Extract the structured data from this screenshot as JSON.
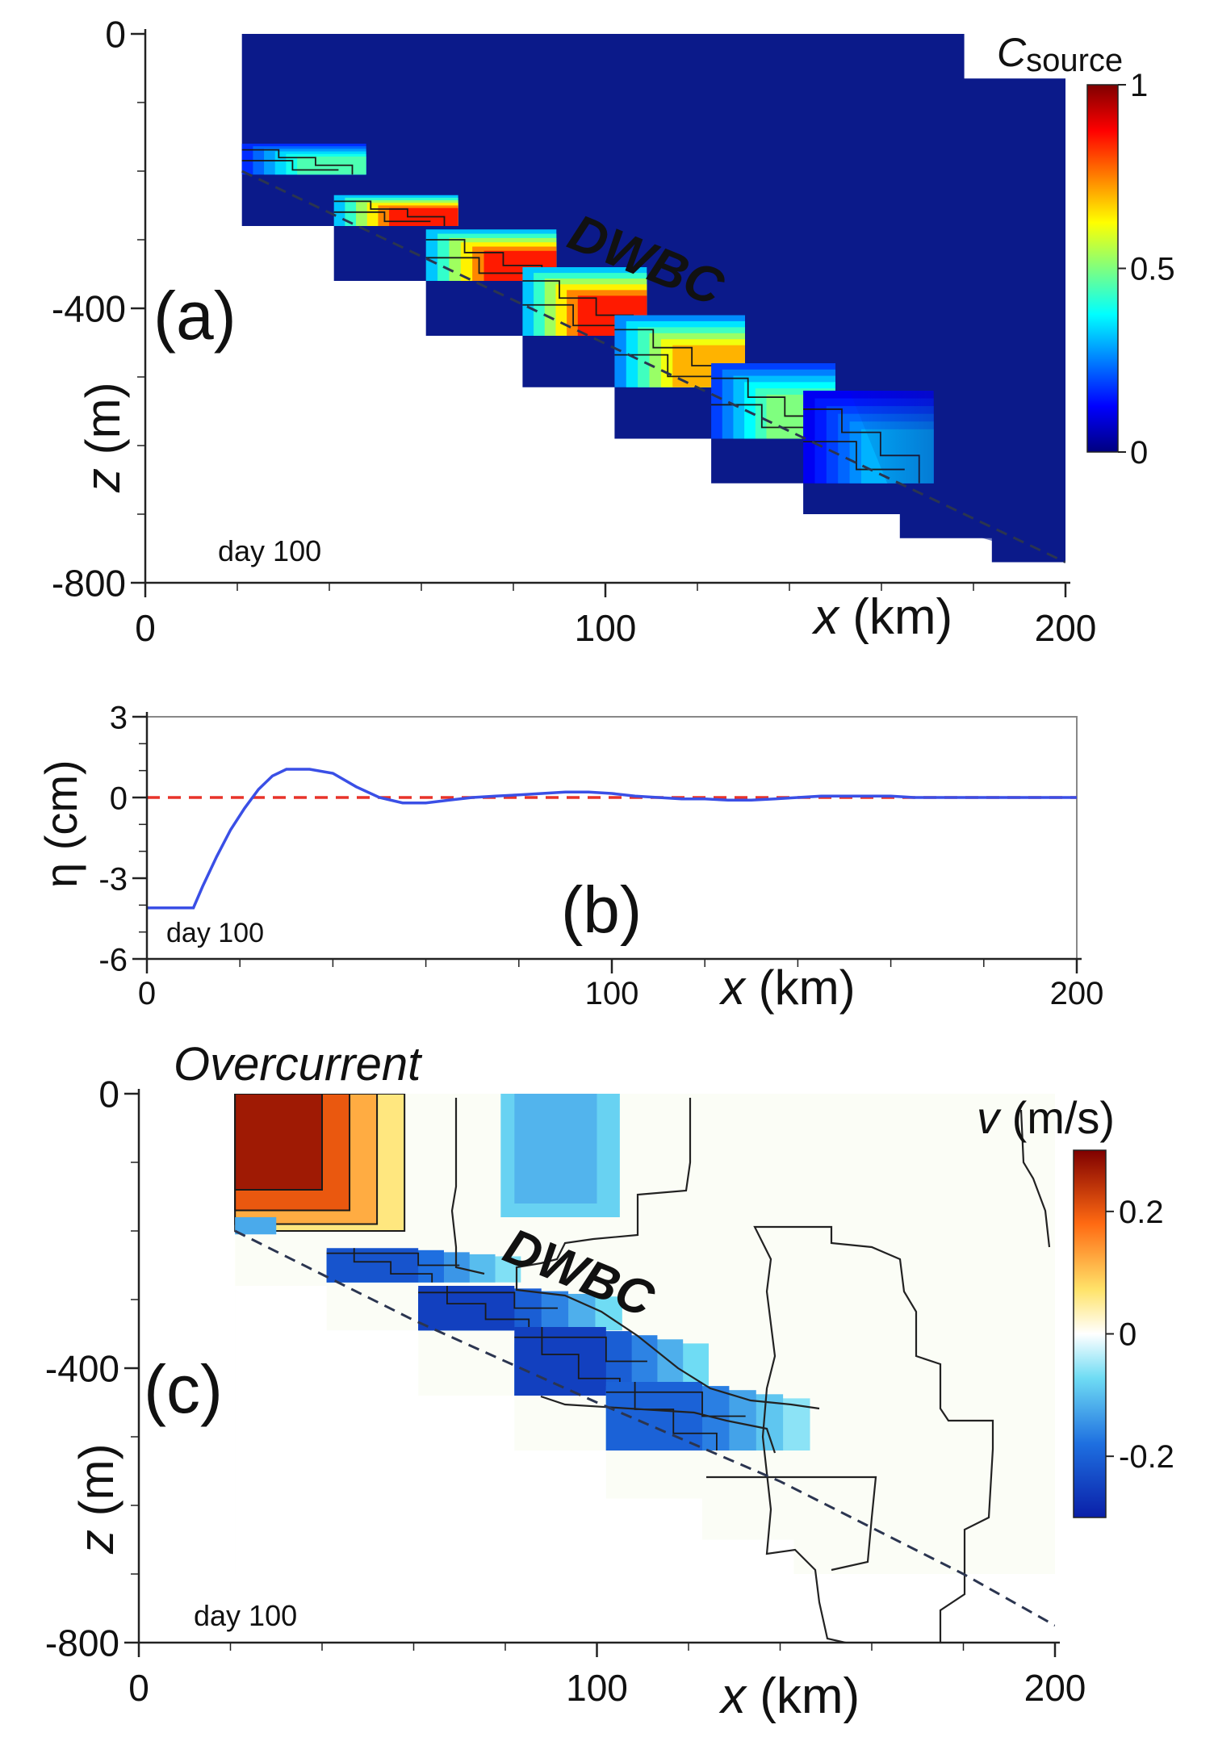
{
  "chart_data": [
    {
      "panel": "a",
      "type": "heatmap",
      "panel_label": "(a)",
      "day_label": "day 100",
      "annotation": "DWBC",
      "xlabel_italic": "x",
      "xlabel_unit": "(km)",
      "ylabel_italic": "z",
      "ylabel_unit": "(m)",
      "xlim": [
        0,
        200
      ],
      "ylim": [
        -800,
        0
      ],
      "xticks": [
        0,
        100,
        200
      ],
      "yticks": [
        0,
        -400,
        -800
      ],
      "colorbar": {
        "title_italic": "C",
        "title_sub": "source",
        "range": [
          0,
          1
        ],
        "ticks": [
          0,
          0.5,
          1
        ]
      },
      "slope_line": {
        "x": [
          21,
          200
        ],
        "z": [
          -200,
          -770
        ]
      },
      "high_concentration_blocks": [
        {
          "x0": 21,
          "x1": 41,
          "z_top": -160,
          "z_bot": -205,
          "c": 0.45
        },
        {
          "x0": 41,
          "x1": 61,
          "z_top": -235,
          "z_bot": -280,
          "c": 0.85
        },
        {
          "x0": 61,
          "x1": 82,
          "z_top": -285,
          "z_bot": -360,
          "c": 0.85
        },
        {
          "x0": 82,
          "x1": 102,
          "z_top": -340,
          "z_bot": -440,
          "c": 0.85
        },
        {
          "x0": 102,
          "x1": 123,
          "z_top": -410,
          "z_bot": -515,
          "c": 0.7
        },
        {
          "x0": 123,
          "x1": 143,
          "z_top": -480,
          "z_bot": -590,
          "c": 0.5
        },
        {
          "x0": 143,
          "x1": 164,
          "z_top": -520,
          "z_bot": -655,
          "c": 0.3
        }
      ]
    },
    {
      "panel": "b",
      "type": "line",
      "panel_label": "(b)",
      "day_label": "day 100",
      "xlabel_italic": "x",
      "xlabel_unit": "(km)",
      "ylabel": "η (cm)",
      "xlim": [
        0,
        200
      ],
      "ylim": [
        -6,
        3
      ],
      "xticks": [
        0,
        100,
        200
      ],
      "yticks": [
        3,
        0,
        -3,
        -6
      ],
      "series": [
        {
          "name": "η",
          "color": "#3a4fe6",
          "x": [
            0,
            10,
            12,
            15,
            18,
            21,
            24,
            27,
            30,
            35,
            40,
            45,
            50,
            55,
            60,
            65,
            70,
            75,
            80,
            85,
            90,
            95,
            100,
            105,
            110,
            115,
            120,
            125,
            130,
            135,
            140,
            145,
            150,
            155,
            160,
            165,
            170,
            180,
            190,
            200
          ],
          "y": [
            -4.1,
            -4.1,
            -3.3,
            -2.2,
            -1.2,
            -0.4,
            0.3,
            0.8,
            1.05,
            1.05,
            0.9,
            0.4,
            0.0,
            -0.2,
            -0.2,
            -0.1,
            0.0,
            0.05,
            0.1,
            0.15,
            0.2,
            0.2,
            0.15,
            0.05,
            0.0,
            -0.05,
            -0.05,
            -0.1,
            -0.1,
            -0.05,
            0.0,
            0.05,
            0.05,
            0.05,
            0.05,
            0.0,
            0.0,
            0.0,
            0.0,
            0.0
          ]
        }
      ],
      "reference_line": {
        "y": 0,
        "color": "#e8332a",
        "style": "dashed"
      }
    },
    {
      "panel": "c",
      "type": "heatmap",
      "panel_label": "(c)",
      "day_label": "day 100",
      "annotation_1": "Overcurrent",
      "annotation_2": "DWBC",
      "xlabel_italic": "x",
      "xlabel_unit": "(km)",
      "ylabel_italic": "z",
      "ylabel_unit": "(m)",
      "xlim": [
        0,
        200
      ],
      "ylim": [
        -800,
        0
      ],
      "xticks": [
        0,
        100,
        200
      ],
      "yticks": [
        0,
        -400,
        -800
      ],
      "colorbar": {
        "title_italic": "v",
        "title_unit": "(m/s)",
        "range": [
          -0.3,
          0.3
        ],
        "ticks": [
          0.2,
          0,
          -0.2
        ]
      },
      "slope_curve": {
        "x": [
          21,
          60,
          100,
          140,
          180,
          200
        ],
        "z": [
          -200,
          -330,
          -450,
          -565,
          -700,
          -775
        ]
      },
      "overcurrent_layers": [
        {
          "x0": 21,
          "x1": 40,
          "z_top": 0,
          "z_bot": -140,
          "v": 0.27
        },
        {
          "x0": 40,
          "x1": 46,
          "z_top": 0,
          "z_bot": -170,
          "v": 0.2
        },
        {
          "x0": 46,
          "x1": 52,
          "z_top": 0,
          "z_bot": -190,
          "v": 0.12
        },
        {
          "x0": 52,
          "x1": 58,
          "z_top": 0,
          "z_bot": -200,
          "v": 0.06
        }
      ],
      "dwbc_blocks": [
        {
          "x0": 41,
          "x1": 61,
          "z_top": -225,
          "z_bot": -275,
          "v": -0.22
        },
        {
          "x0": 61,
          "x1": 82,
          "z_top": -280,
          "z_bot": -345,
          "v": -0.25
        },
        {
          "x0": 82,
          "x1": 102,
          "z_top": -340,
          "z_bot": -440,
          "v": -0.25
        },
        {
          "x0": 102,
          "x1": 123,
          "z_top": -420,
          "z_bot": -520,
          "v": -0.2
        }
      ]
    }
  ]
}
